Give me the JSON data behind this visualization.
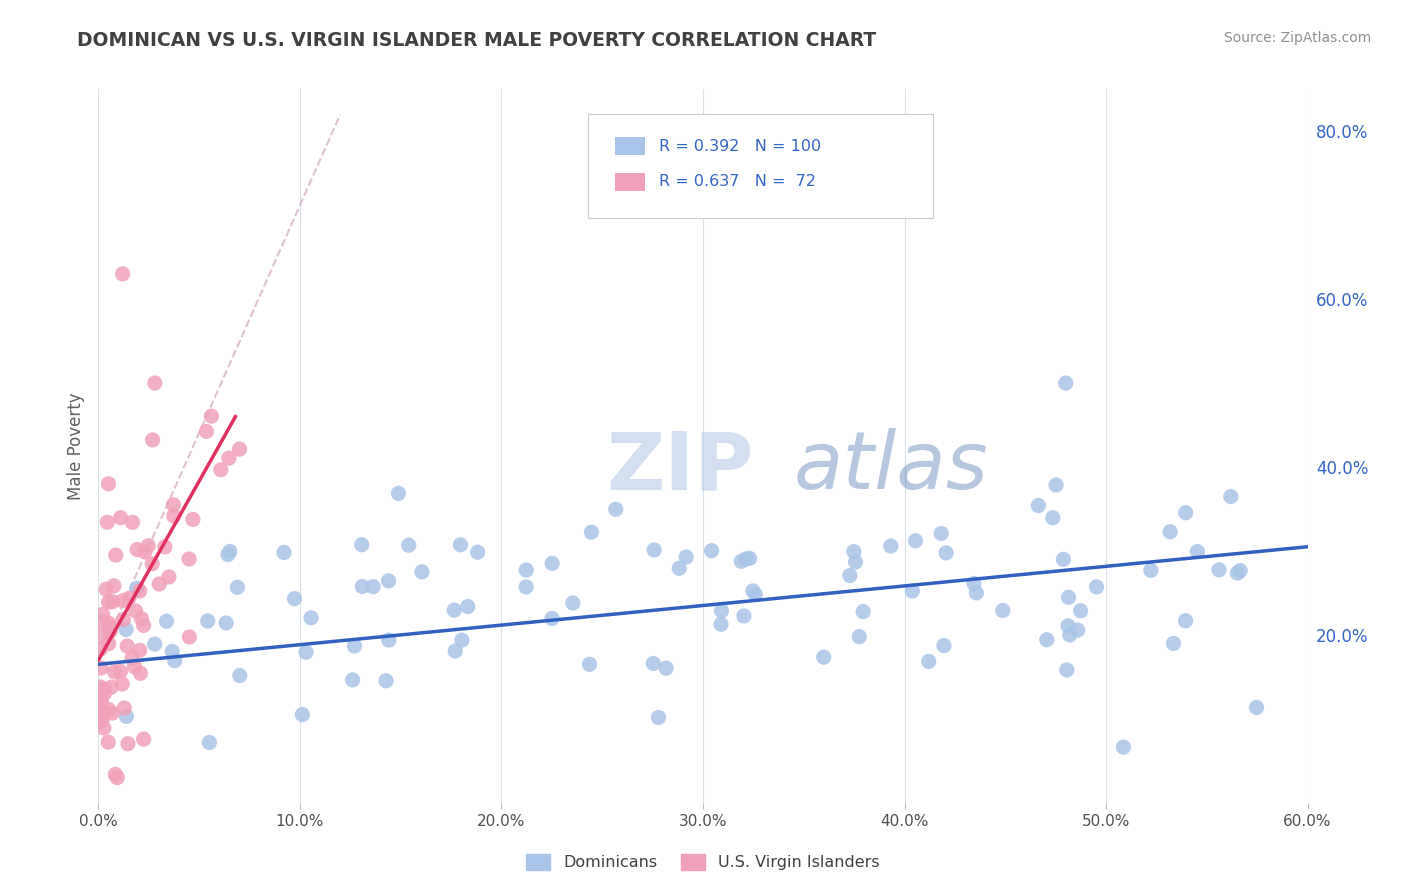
{
  "title": "DOMINICAN VS U.S. VIRGIN ISLANDER MALE POVERTY CORRELATION CHART",
  "source_text": "Source: ZipAtlas.com",
  "ylabel": "Male Poverty",
  "watermark_zip": "ZIP",
  "watermark_atlas": "atlas",
  "xmin": 0.0,
  "xmax": 0.6,
  "ymin": 0.0,
  "ymax": 0.85,
  "xticks": [
    0.0,
    0.1,
    0.2,
    0.3,
    0.4,
    0.5,
    0.6
  ],
  "yticks_right": [
    0.2,
    0.4,
    0.6,
    0.8
  ],
  "blue_R": 0.392,
  "blue_N": 100,
  "pink_R": 0.637,
  "pink_N": 72,
  "blue_color": "#a8c4e8",
  "pink_color": "#f0a0b8",
  "blue_line_color": "#3060c0",
  "pink_line_color": "#e03060",
  "pink_dash_color": "#d0a8c0",
  "title_color": "#404040",
  "source_color": "#909090",
  "legend_color": "#3465c8",
  "background_color": "#ffffff",
  "grid_color": "#d8e0ec",
  "dot_size": 120
}
